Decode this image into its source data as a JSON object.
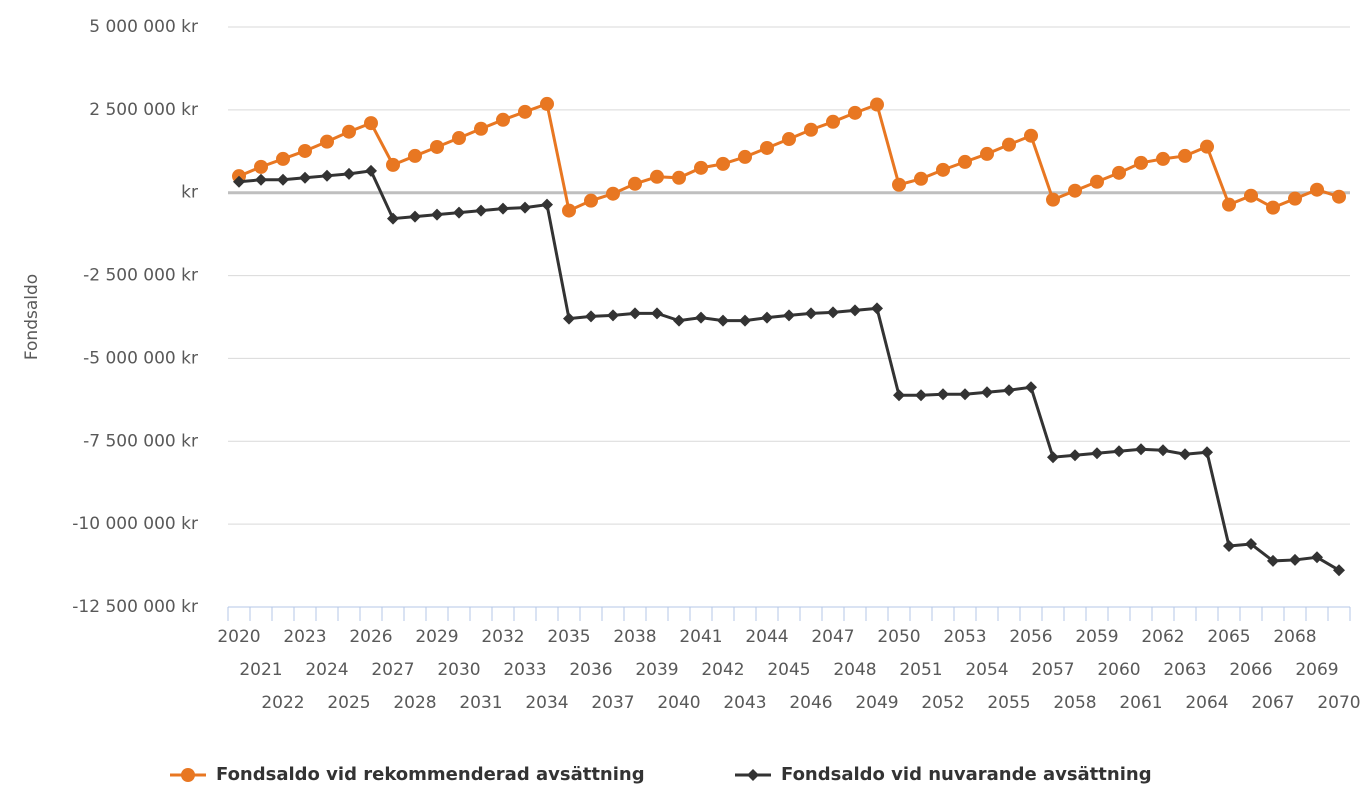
{
  "chart_data": {
    "type": "line",
    "y_label": "Fondsaldo",
    "categories": [
      "2020",
      "2021",
      "2022",
      "2023",
      "2024",
      "2025",
      "2026",
      "2027",
      "2028",
      "2029",
      "2030",
      "2031",
      "2032",
      "2033",
      "2034",
      "2035",
      "2036",
      "2037",
      "2038",
      "2039",
      "2040",
      "2041",
      "2042",
      "2043",
      "2044",
      "2045",
      "2046",
      "2047",
      "2048",
      "2049",
      "2050",
      "2051",
      "2052",
      "2053",
      "2054",
      "2055",
      "2056",
      "2057",
      "2058",
      "2059",
      "2060",
      "2061",
      "2062",
      "2063",
      "2064",
      "2065",
      "2066",
      "2067",
      "2068",
      "2069",
      "2070"
    ],
    "series": [
      {
        "name": "Fondsaldo vid rekommenderad avsättning",
        "color": "#e87722",
        "marker": "circle",
        "values": [
          500000,
          780000,
          1020000,
          1260000,
          1540000,
          1840000,
          2100000,
          840000,
          1110000,
          1380000,
          1650000,
          1930000,
          2200000,
          2440000,
          2680000,
          -540000,
          -240000,
          -30000,
          270000,
          480000,
          450000,
          750000,
          870000,
          1080000,
          1350000,
          1620000,
          1900000,
          2140000,
          2410000,
          2660000,
          240000,
          420000,
          690000,
          930000,
          1170000,
          1450000,
          1720000,
          -210000,
          60000,
          330000,
          600000,
          900000,
          1020000,
          1110000,
          1390000,
          -360000,
          -90000,
          -450000,
          -180000,
          90000,
          -120000
        ]
      },
      {
        "name": "Fondsaldo vid nuvarande avsättning",
        "color": "#333333",
        "marker": "diamond",
        "values": [
          330000,
          390000,
          390000,
          450000,
          510000,
          570000,
          660000,
          -780000,
          -720000,
          -660000,
          -600000,
          -540000,
          -480000,
          -450000,
          -360000,
          -3800000,
          -3730000,
          -3700000,
          -3640000,
          -3640000,
          -3860000,
          -3770000,
          -3860000,
          -3860000,
          -3770000,
          -3700000,
          -3640000,
          -3610000,
          -3550000,
          -3490000,
          -6110000,
          -6110000,
          -6080000,
          -6080000,
          -6020000,
          -5960000,
          -5870000,
          -7980000,
          -7920000,
          -7860000,
          -7800000,
          -7740000,
          -7770000,
          -7890000,
          -7830000,
          -10660000,
          -10600000,
          -11110000,
          -11080000,
          -11000000,
          -11390000
        ]
      }
    ],
    "ylim": [
      -12500000,
      5000000
    ],
    "yticks": [
      {
        "value": -12500000,
        "label": "-12 500 000 kr"
      },
      {
        "value": -10000000,
        "label": "-10 000 000 kr"
      },
      {
        "value": -7500000,
        "label": "-7 500 000 kr"
      },
      {
        "value": -5000000,
        "label": "-5 000 000 kr"
      },
      {
        "value": -2500000,
        "label": "-2 500 000 kr"
      },
      {
        "value": 0,
        "label": "kr"
      },
      {
        "value": 2500000,
        "label": "2 500 000 kr"
      },
      {
        "value": 5000000,
        "label": "5 000 000 kr"
      }
    ],
    "grid": true,
    "legend": "bottom"
  }
}
